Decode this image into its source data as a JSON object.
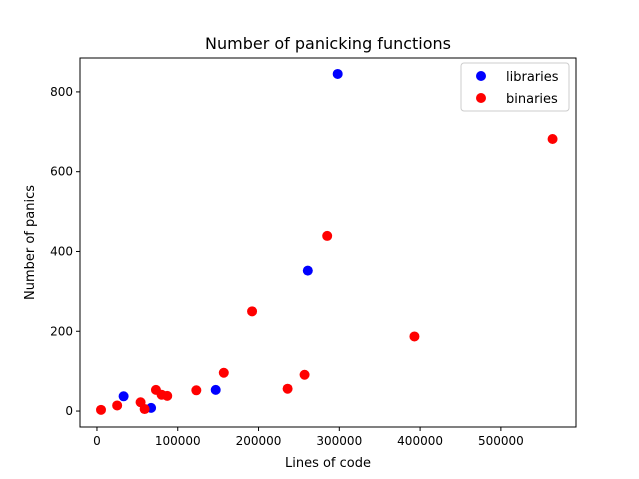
{
  "chart_data": {
    "type": "scatter",
    "title": "Number of panicking functions",
    "xlabel": "Lines of code",
    "ylabel": "Number of panics",
    "xlim": [
      -21000,
      593000
    ],
    "ylim": [
      -40,
      885
    ],
    "xticks": [
      0,
      100000,
      200000,
      300000,
      400000,
      500000
    ],
    "xtick_labels": [
      "0",
      "100000",
      "200000",
      "300000",
      "400000",
      "500000"
    ],
    "yticks": [
      0,
      200,
      400,
      600,
      800
    ],
    "ytick_labels": [
      "0",
      "200",
      "400",
      "600",
      "800"
    ],
    "grid": false,
    "legend_position": "top-right",
    "series": [
      {
        "name": "libraries",
        "color": "#0000ff",
        "points": [
          {
            "x": 33000,
            "y": 37
          },
          {
            "x": 67000,
            "y": 8
          },
          {
            "x": 147000,
            "y": 53
          },
          {
            "x": 261000,
            "y": 352
          },
          {
            "x": 298000,
            "y": 845
          }
        ]
      },
      {
        "name": "binaries",
        "color": "#ff0000",
        "points": [
          {
            "x": 5000,
            "y": 3
          },
          {
            "x": 25000,
            "y": 14
          },
          {
            "x": 54000,
            "y": 22
          },
          {
            "x": 59000,
            "y": 5
          },
          {
            "x": 73000,
            "y": 53
          },
          {
            "x": 80000,
            "y": 41
          },
          {
            "x": 87000,
            "y": 38
          },
          {
            "x": 123000,
            "y": 52
          },
          {
            "x": 157000,
            "y": 96
          },
          {
            "x": 192000,
            "y": 250
          },
          {
            "x": 236000,
            "y": 56
          },
          {
            "x": 257000,
            "y": 91
          },
          {
            "x": 285000,
            "y": 439
          },
          {
            "x": 393000,
            "y": 187
          },
          {
            "x": 564000,
            "y": 682
          }
        ]
      }
    ]
  }
}
